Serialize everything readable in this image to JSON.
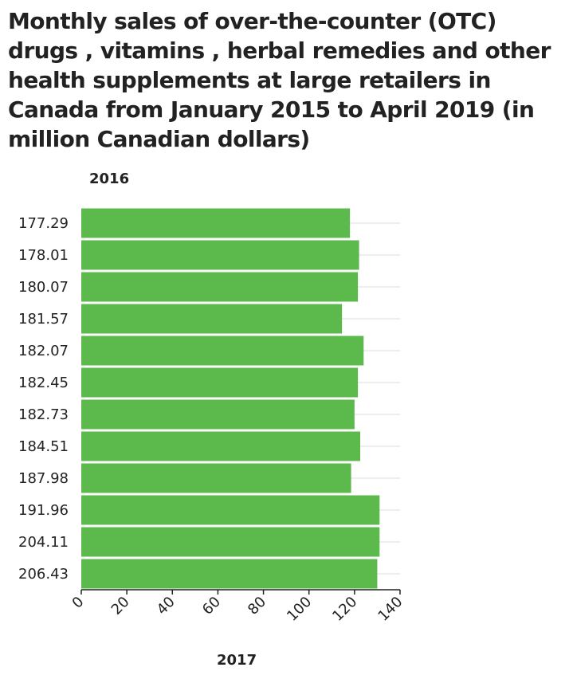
{
  "chart_data": {
    "type": "bar",
    "orientation": "horizontal",
    "title": "Monthly sales of over-the-counter (OTC) drugs , vitamins , herbal remedies and other health supplements at large retailers in Canada from January 2015 to April 2019 (in million Canadian dollars)",
    "ylabel": "2016",
    "xlabel": "2017",
    "categories": [
      "177.29",
      "178.01",
      "180.07",
      "181.57",
      "182.07",
      "182.45",
      "182.73",
      "184.51",
      "187.98",
      "191.96",
      "204.11",
      "206.43"
    ],
    "values": [
      118,
      122,
      121.5,
      114.5,
      124,
      121.5,
      120,
      122.5,
      118.5,
      131,
      131,
      130
    ],
    "xlim": [
      0,
      140
    ],
    "xticks": [
      0,
      20,
      40,
      60,
      80,
      100,
      120,
      140
    ],
    "grid": true,
    "colors": {
      "bar": "#5cb94c",
      "grid": "#dddddd",
      "axis": "#222222"
    }
  }
}
